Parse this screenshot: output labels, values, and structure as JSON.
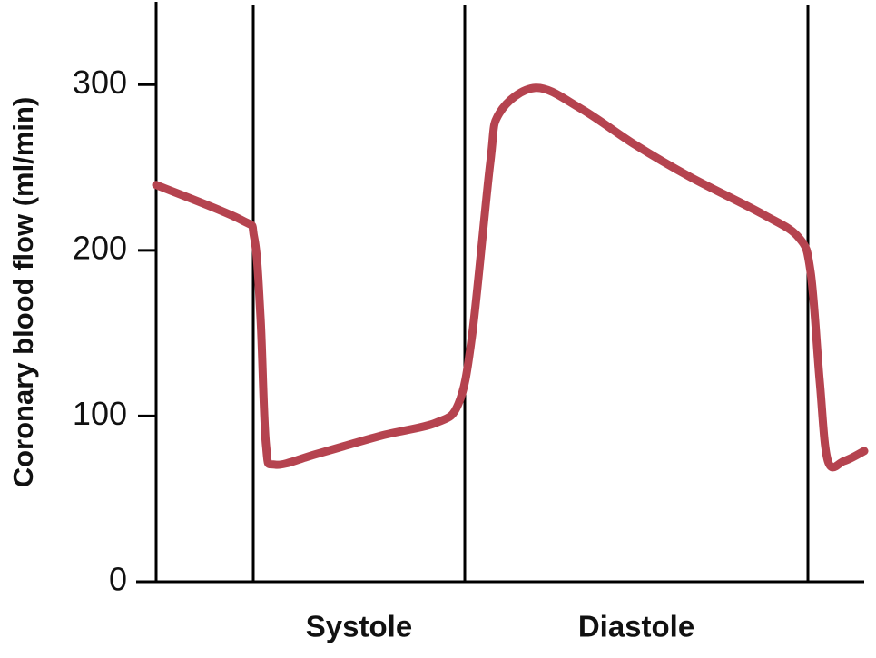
{
  "chart_data": {
    "type": "line",
    "y_label": "Coronary blood flow (ml/min)",
    "x": [
      0,
      93,
      108,
      115,
      121,
      131,
      178,
      248,
      308,
      333,
      348,
      368,
      378,
      418,
      468,
      528,
      588,
      668,
      708,
      721,
      731,
      740,
      758,
      780
    ],
    "series": [
      {
        "color": "#b5434f",
        "values": [
          239.5,
          218.6,
          207.7,
          159.5,
          82.7,
          70.7,
          77.3,
          88.2,
          95.9,
          107.4,
          148.5,
          252.6,
          282.7,
          298.1,
          285.5,
          263.6,
          244.4,
          221.9,
          207.7,
          186.8,
          121.1,
          72.9,
          72.9,
          78.9
        ]
      }
    ],
    "xlim": [
      0,
      780
    ],
    "ylim": [
      0,
      350
    ],
    "yticks": [
      0,
      100,
      200,
      300
    ],
    "phases": [
      {
        "label": "Systole",
        "start": 107,
        "end": 340
      },
      {
        "label": "Diastole",
        "start": 340,
        "end": 718
      }
    ]
  }
}
